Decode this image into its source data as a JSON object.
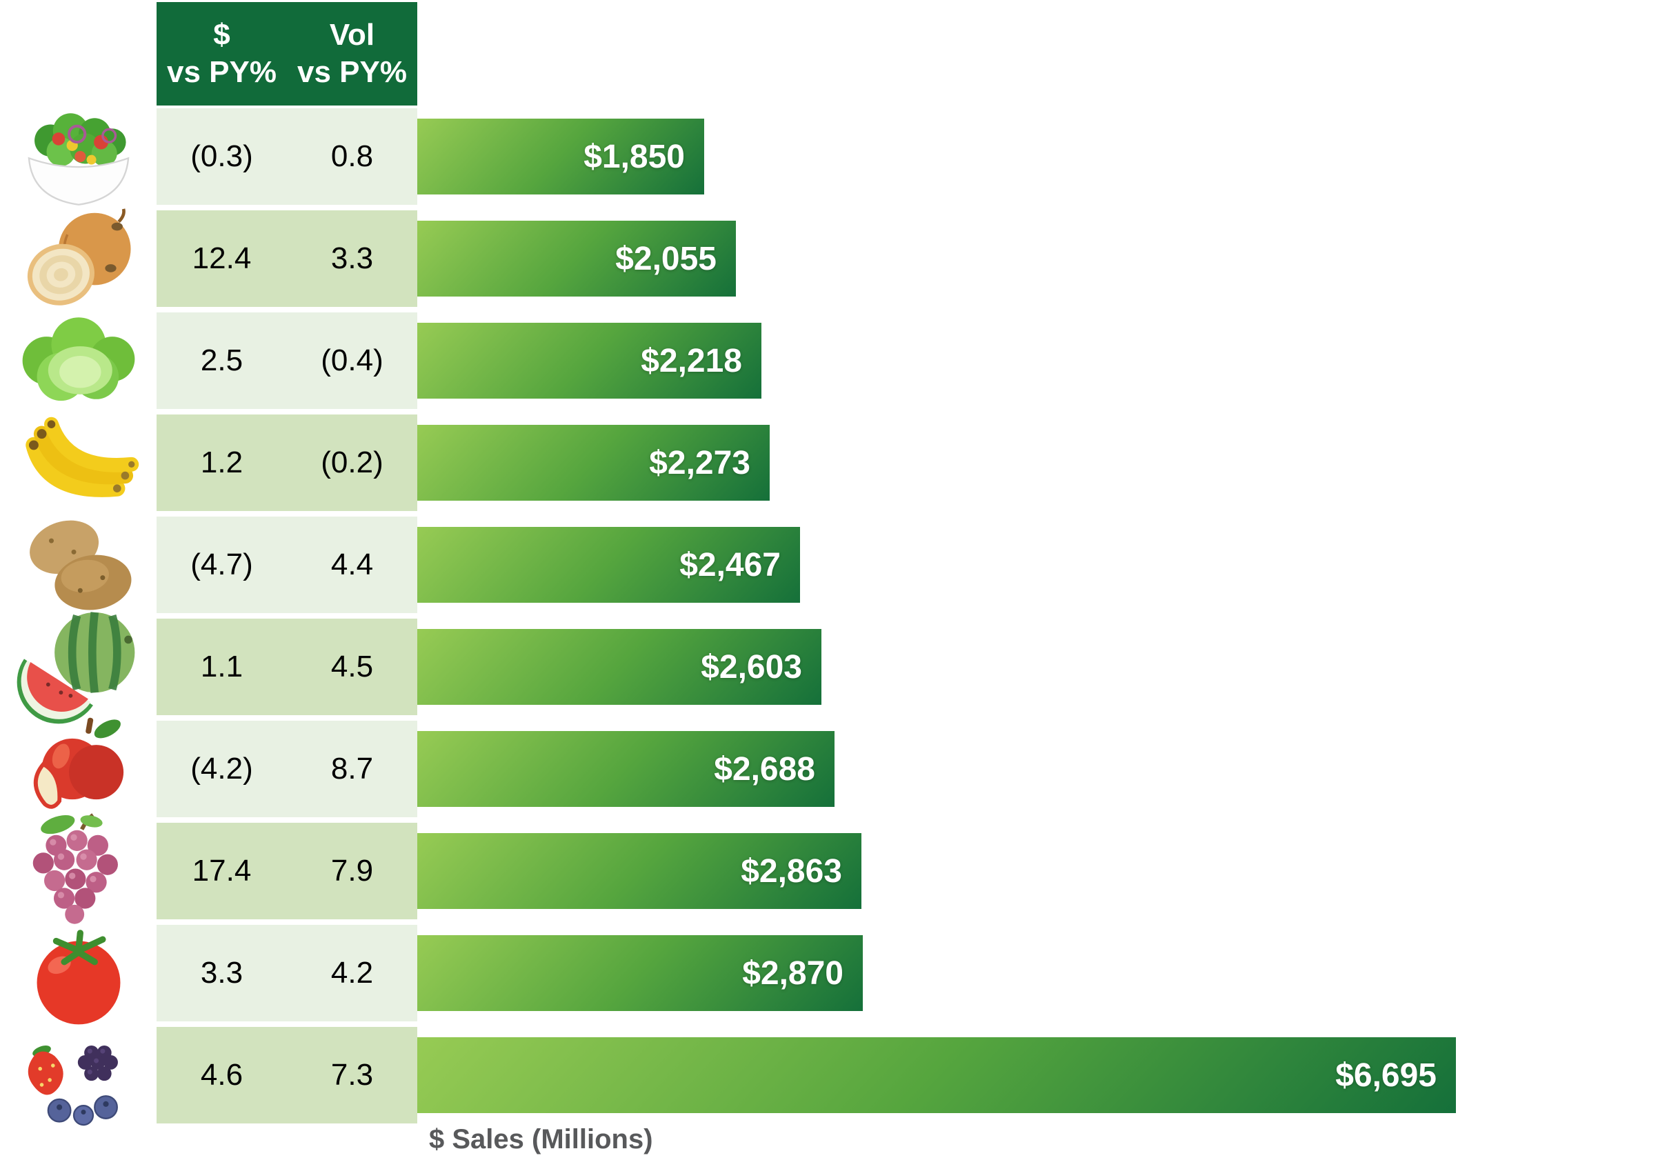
{
  "chart_data": {
    "type": "bar",
    "orientation": "horizontal",
    "title": "",
    "xlabel": "$ Sales (Millions)",
    "value_unit": "USD millions",
    "columns": [
      "$ vs PY%",
      "Vol vs PY%"
    ],
    "items": [
      {
        "id": "salad",
        "label": "salad",
        "dollar_vs_py": "(0.3)",
        "vol_vs_py": "0.8",
        "sales": 1850,
        "sales_label": "$1,850"
      },
      {
        "id": "onion",
        "label": "onions",
        "dollar_vs_py": "12.4",
        "vol_vs_py": "3.3",
        "sales": 2055,
        "sales_label": "$2,055"
      },
      {
        "id": "lettuce",
        "label": "lettuce",
        "dollar_vs_py": "2.5",
        "vol_vs_py": "(0.4)",
        "sales": 2218,
        "sales_label": "$2,218"
      },
      {
        "id": "banana",
        "label": "bananas",
        "dollar_vs_py": "1.2",
        "vol_vs_py": "(0.2)",
        "sales": 2273,
        "sales_label": "$2,273"
      },
      {
        "id": "potato",
        "label": "potatoes",
        "dollar_vs_py": "(4.7)",
        "vol_vs_py": "4.4",
        "sales": 2467,
        "sales_label": "$2,467"
      },
      {
        "id": "watermelon",
        "label": "watermelon",
        "dollar_vs_py": "1.1",
        "vol_vs_py": "4.5",
        "sales": 2603,
        "sales_label": "$2,603"
      },
      {
        "id": "apple",
        "label": "apples",
        "dollar_vs_py": "(4.2)",
        "vol_vs_py": "8.7",
        "sales": 2688,
        "sales_label": "$2,688"
      },
      {
        "id": "grapes",
        "label": "grapes",
        "dollar_vs_py": "17.4",
        "vol_vs_py": "7.9",
        "sales": 2863,
        "sales_label": "$2,863"
      },
      {
        "id": "tomato",
        "label": "tomatoes",
        "dollar_vs_py": "3.3",
        "vol_vs_py": "4.2",
        "sales": 2870,
        "sales_label": "$2,870"
      },
      {
        "id": "berries",
        "label": "berries",
        "dollar_vs_py": "4.6",
        "vol_vs_py": "7.3",
        "sales": 6695,
        "sales_label": "$6,695"
      }
    ]
  },
  "table": {
    "header": {
      "col1_line1": "$",
      "col1_line2": "vs PY%",
      "col2_line1": "Vol",
      "col2_line2": "vs PY%"
    }
  },
  "colors": {
    "header_bg": "#116B3A",
    "row_light": "#E8F1E3",
    "row_dark": "#D2E3BE",
    "bar_gradient_start": "#97CB54",
    "bar_gradient_end": "#15703A",
    "bar_label": "#FFFFFF",
    "axis_label": "#58595B"
  }
}
